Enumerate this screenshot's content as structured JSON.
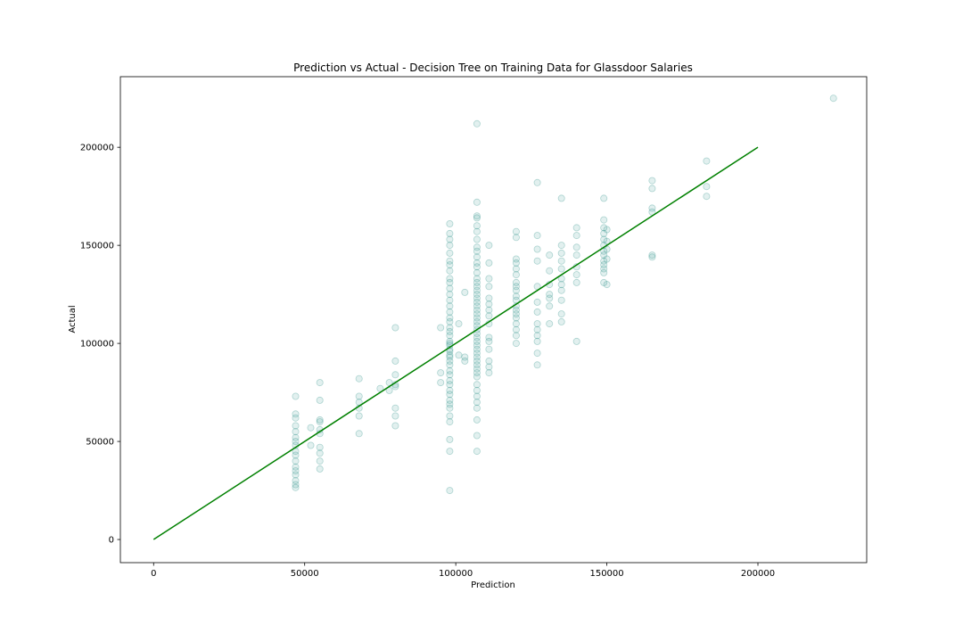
{
  "chart_data": {
    "type": "scatter",
    "title": "Prediction vs Actual - Decision Tree on Training Data for Glassdoor Salaries",
    "xlabel": "Prediction",
    "ylabel": "Actual",
    "xlim": [
      -11000,
      236000
    ],
    "ylim": [
      -11800,
      236000
    ],
    "x_ticks": [
      0,
      50000,
      100000,
      150000,
      200000
    ],
    "y_ticks": [
      0,
      50000,
      100000,
      150000,
      200000
    ],
    "x_tick_labels": [
      "0",
      "50000",
      "100000",
      "150000",
      "200000"
    ],
    "y_tick_labels": [
      "0",
      "50000",
      "100000",
      "150000",
      "200000"
    ],
    "grid": false,
    "legend": "none",
    "colors": {
      "points": "#1f8a80",
      "line": "#008000",
      "frame": "#000000"
    },
    "reference_line": {
      "name": "y = x",
      "x": [
        0,
        200000
      ],
      "y": [
        0,
        200000
      ]
    },
    "points": [
      [
        47000,
        73000
      ],
      [
        47000,
        64000
      ],
      [
        47000,
        62000
      ],
      [
        47000,
        58000
      ],
      [
        47000,
        55000
      ],
      [
        47000,
        52000
      ],
      [
        47000,
        50000
      ],
      [
        47000,
        48000
      ],
      [
        47000,
        45000
      ],
      [
        47000,
        43000
      ],
      [
        47000,
        40000
      ],
      [
        47000,
        37000
      ],
      [
        47000,
        35000
      ],
      [
        47000,
        33000
      ],
      [
        47000,
        30000
      ],
      [
        47000,
        28000
      ],
      [
        47000,
        26500
      ],
      [
        52000,
        57000
      ],
      [
        52000,
        48000
      ],
      [
        55000,
        80000
      ],
      [
        55000,
        71000
      ],
      [
        55000,
        61000
      ],
      [
        55000,
        60000
      ],
      [
        55000,
        56000
      ],
      [
        55000,
        54000
      ],
      [
        55000,
        47000
      ],
      [
        55000,
        44000
      ],
      [
        55000,
        40000
      ],
      [
        55000,
        36000
      ],
      [
        68000,
        82000
      ],
      [
        68000,
        73000
      ],
      [
        68000,
        70000
      ],
      [
        68000,
        67000
      ],
      [
        68000,
        63000
      ],
      [
        68000,
        54000
      ],
      [
        75000,
        77000
      ],
      [
        78000,
        76000
      ],
      [
        78000,
        80000
      ],
      [
        80000,
        108000
      ],
      [
        80000,
        91000
      ],
      [
        80000,
        84000
      ],
      [
        80000,
        79000
      ],
      [
        80000,
        78000
      ],
      [
        80000,
        67000
      ],
      [
        80000,
        63000
      ],
      [
        80000,
        58000
      ],
      [
        95000,
        108000
      ],
      [
        95000,
        85000
      ],
      [
        95000,
        80000
      ],
      [
        98000,
        100000
      ],
      [
        98000,
        97000
      ],
      [
        98000,
        93000
      ],
      [
        98000,
        161000
      ],
      [
        98000,
        156000
      ],
      [
        98000,
        153000
      ],
      [
        98000,
        150000
      ],
      [
        98000,
        146000
      ],
      [
        98000,
        142000
      ],
      [
        98000,
        140000
      ],
      [
        98000,
        137000
      ],
      [
        98000,
        133000
      ],
      [
        98000,
        131000
      ],
      [
        98000,
        128000
      ],
      [
        98000,
        125000
      ],
      [
        98000,
        122000
      ],
      [
        98000,
        119000
      ],
      [
        98000,
        116000
      ],
      [
        98000,
        113000
      ],
      [
        98000,
        111000
      ],
      [
        98000,
        108000
      ],
      [
        98000,
        106000
      ],
      [
        98000,
        104000
      ],
      [
        98000,
        101000
      ],
      [
        98000,
        99000
      ],
      [
        98000,
        96000
      ],
      [
        98000,
        94000
      ],
      [
        98000,
        91000
      ],
      [
        98000,
        89000
      ],
      [
        98000,
        86000
      ],
      [
        98000,
        84000
      ],
      [
        98000,
        81000
      ],
      [
        98000,
        79000
      ],
      [
        98000,
        76000
      ],
      [
        98000,
        74000
      ],
      [
        98000,
        71000
      ],
      [
        98000,
        69000
      ],
      [
        98000,
        67000
      ],
      [
        98000,
        63000
      ],
      [
        98000,
        60000
      ],
      [
        98000,
        51000
      ],
      [
        98000,
        45000
      ],
      [
        98000,
        25000
      ],
      [
        101000,
        110000
      ],
      [
        101000,
        94000
      ],
      [
        103000,
        126000
      ],
      [
        103000,
        93000
      ],
      [
        103000,
        91000
      ],
      [
        107000,
        212000
      ],
      [
        107000,
        172000
      ],
      [
        107000,
        165000
      ],
      [
        107000,
        164000
      ],
      [
        107000,
        160000
      ],
      [
        107000,
        157000
      ],
      [
        107000,
        153000
      ],
      [
        107000,
        149000
      ],
      [
        107000,
        147000
      ],
      [
        107000,
        144000
      ],
      [
        107000,
        141000
      ],
      [
        107000,
        139000
      ],
      [
        107000,
        136000
      ],
      [
        107000,
        133000
      ],
      [
        107000,
        131000
      ],
      [
        107000,
        129000
      ],
      [
        107000,
        127000
      ],
      [
        107000,
        125000
      ],
      [
        107000,
        123000
      ],
      [
        107000,
        121000
      ],
      [
        107000,
        119000
      ],
      [
        107000,
        117000
      ],
      [
        107000,
        115000
      ],
      [
        107000,
        113000
      ],
      [
        107000,
        111000
      ],
      [
        107000,
        109000
      ],
      [
        107000,
        107000
      ],
      [
        107000,
        105000
      ],
      [
        107000,
        103000
      ],
      [
        107000,
        101000
      ],
      [
        107000,
        99000
      ],
      [
        107000,
        97000
      ],
      [
        107000,
        95000
      ],
      [
        107000,
        93000
      ],
      [
        107000,
        91000
      ],
      [
        107000,
        89000
      ],
      [
        107000,
        87000
      ],
      [
        107000,
        85000
      ],
      [
        107000,
        83000
      ],
      [
        107000,
        79000
      ],
      [
        107000,
        76000
      ],
      [
        107000,
        73000
      ],
      [
        107000,
        70000
      ],
      [
        107000,
        67000
      ],
      [
        107000,
        61000
      ],
      [
        107000,
        53000
      ],
      [
        107000,
        45000
      ],
      [
        111000,
        150000
      ],
      [
        111000,
        141000
      ],
      [
        111000,
        133000
      ],
      [
        111000,
        129000
      ],
      [
        111000,
        123000
      ],
      [
        111000,
        120000
      ],
      [
        111000,
        117000
      ],
      [
        111000,
        114000
      ],
      [
        111000,
        110000
      ],
      [
        111000,
        103000
      ],
      [
        111000,
        101000
      ],
      [
        111000,
        97000
      ],
      [
        111000,
        91000
      ],
      [
        111000,
        88000
      ],
      [
        111000,
        85000
      ],
      [
        120000,
        157000
      ],
      [
        120000,
        154000
      ],
      [
        120000,
        143000
      ],
      [
        120000,
        141000
      ],
      [
        120000,
        138000
      ],
      [
        120000,
        135000
      ],
      [
        120000,
        131000
      ],
      [
        120000,
        129000
      ],
      [
        120000,
        127000
      ],
      [
        120000,
        124000
      ],
      [
        120000,
        122000
      ],
      [
        120000,
        119000
      ],
      [
        120000,
        117000
      ],
      [
        120000,
        115000
      ],
      [
        120000,
        113000
      ],
      [
        120000,
        110000
      ],
      [
        120000,
        107000
      ],
      [
        120000,
        104000
      ],
      [
        120000,
        100000
      ],
      [
        127000,
        182000
      ],
      [
        127000,
        155000
      ],
      [
        127000,
        148000
      ],
      [
        127000,
        142000
      ],
      [
        127000,
        129000
      ],
      [
        127000,
        121000
      ],
      [
        127000,
        116000
      ],
      [
        127000,
        110000
      ],
      [
        127000,
        107000
      ],
      [
        127000,
        104000
      ],
      [
        127000,
        101000
      ],
      [
        127000,
        95000
      ],
      [
        127000,
        89000
      ],
      [
        131000,
        145000
      ],
      [
        131000,
        137000
      ],
      [
        131000,
        130000
      ],
      [
        131000,
        125000
      ],
      [
        131000,
        123000
      ],
      [
        131000,
        119000
      ],
      [
        131000,
        110000
      ],
      [
        135000,
        174000
      ],
      [
        135000,
        150000
      ],
      [
        135000,
        146000
      ],
      [
        135000,
        142000
      ],
      [
        135000,
        138000
      ],
      [
        135000,
        133000
      ],
      [
        135000,
        130000
      ],
      [
        135000,
        127000
      ],
      [
        135000,
        122000
      ],
      [
        135000,
        115000
      ],
      [
        135000,
        111000
      ],
      [
        140000,
        159000
      ],
      [
        140000,
        155000
      ],
      [
        140000,
        149000
      ],
      [
        140000,
        145000
      ],
      [
        140000,
        139000
      ],
      [
        140000,
        135000
      ],
      [
        140000,
        131000
      ],
      [
        140000,
        101000
      ],
      [
        149000,
        174000
      ],
      [
        149000,
        163000
      ],
      [
        149000,
        159000
      ],
      [
        149000,
        156000
      ],
      [
        149000,
        153000
      ],
      [
        149000,
        150000
      ],
      [
        149000,
        147000
      ],
      [
        149000,
        145000
      ],
      [
        149000,
        142000
      ],
      [
        149000,
        140000
      ],
      [
        149000,
        138000
      ],
      [
        149000,
        136000
      ],
      [
        149000,
        131000
      ],
      [
        150000,
        158000
      ],
      [
        150000,
        152000
      ],
      [
        150000,
        148000
      ],
      [
        150000,
        143000
      ],
      [
        150000,
        130000
      ],
      [
        165000,
        183000
      ],
      [
        165000,
        179000
      ],
      [
        165000,
        169000
      ],
      [
        165000,
        167000
      ],
      [
        165000,
        145000
      ],
      [
        165000,
        144000
      ],
      [
        183000,
        193000
      ],
      [
        183000,
        180000
      ],
      [
        183000,
        175000
      ],
      [
        225000,
        225000
      ]
    ]
  }
}
